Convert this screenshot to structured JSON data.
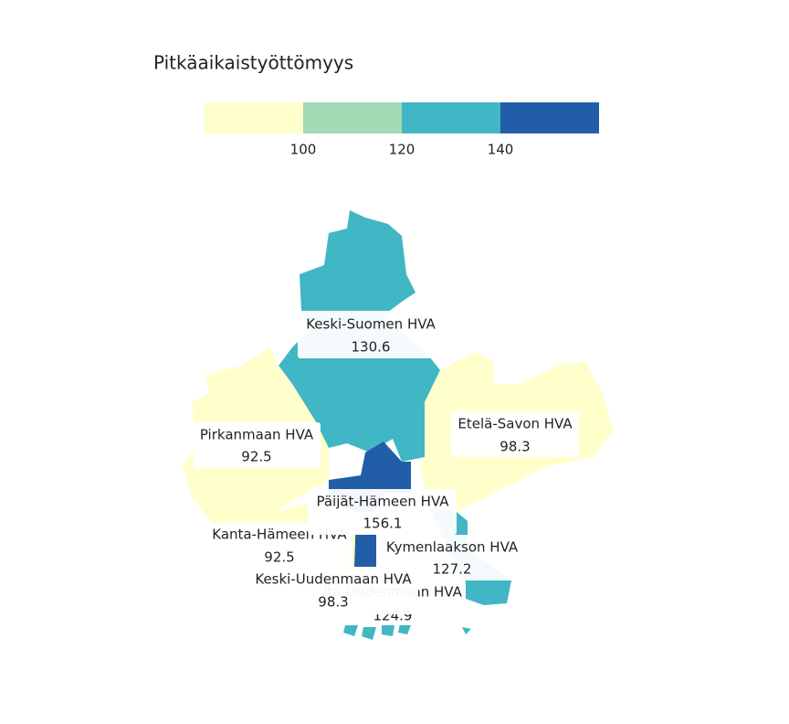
{
  "legend": {
    "title": "Pitkäaikaistyöttömyys",
    "breaks": [
      100,
      120,
      140
    ],
    "colors": [
      "#ffffcc",
      "#a1dab4",
      "#41b6c4",
      "#225ea8"
    ]
  },
  "regions": [
    {
      "name": "Keski-Suomen HVA",
      "value": 130.6
    },
    {
      "name": "Pirkanmaan HVA",
      "value": 92.5
    },
    {
      "name": "Etelä-Savon HVA",
      "value": 98.3
    },
    {
      "name": "Päijät-Hämeen HVA",
      "value": 156.1
    },
    {
      "name": "Kanta-Hämeen HVA",
      "value": 92.5
    },
    {
      "name": "Kymenlaakson HVA",
      "value": 127.2
    },
    {
      "name": "Keski-Uudenmaan HVA",
      "value": 98.3
    },
    {
      "name": "Itä-Uudenmaan HVA",
      "value": 124.9
    }
  ]
}
